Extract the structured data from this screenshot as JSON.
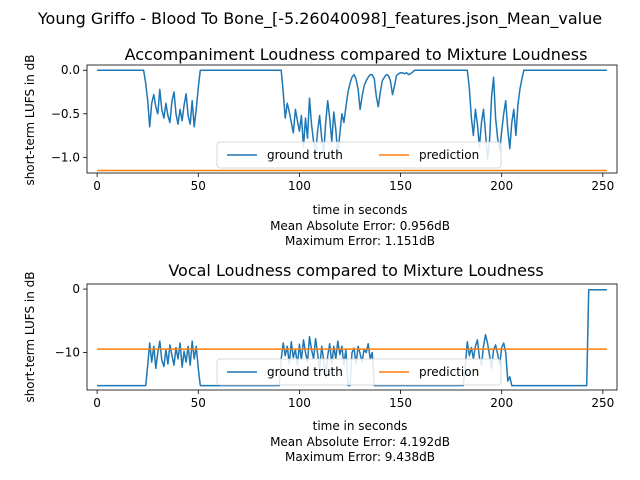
{
  "figure_title": "Young Griffo - Blood To Bone_[-5.26040098]_features.json_Mean_value",
  "colors": {
    "ground_truth": "#1f77b4",
    "prediction": "#ff7f0e"
  },
  "chart_data": [
    {
      "type": "line",
      "title": "Accompaniment Loudness compared to Mixture Loudness",
      "xlabel": "time in seconds",
      "ylabel": "short-term LUFS in dB",
      "xlim": [
        -5,
        257
      ],
      "ylim": [
        -1.18,
        0.06
      ],
      "xticks": [
        0,
        50,
        100,
        150,
        200,
        250
      ],
      "yticks": [
        0.0,
        -0.5,
        -1.0
      ],
      "ytick_labels": [
        "0.0",
        "−0.5",
        "−1.0"
      ],
      "legend": {
        "placement": "lower center",
        "entries": [
          "ground truth",
          "prediction"
        ]
      },
      "annotations": [
        "Mean Absolute Error: 0.956dB",
        "Maximum Error: 1.151dB"
      ],
      "series": [
        {
          "name": "ground truth",
          "x": [
            0,
            23,
            24,
            25,
            26,
            27,
            28,
            29,
            30,
            31,
            32,
            33,
            34,
            35,
            36,
            37,
            38,
            39,
            40,
            41,
            42,
            43,
            44,
            45,
            46,
            47,
            48,
            49,
            50,
            51,
            91,
            92,
            93,
            94,
            95,
            96,
            97,
            98,
            99,
            100,
            101,
            102,
            103,
            104,
            105,
            106,
            107,
            108,
            109,
            110,
            111,
            112,
            113,
            114,
            115,
            116,
            117,
            118,
            119,
            120,
            121,
            122,
            123,
            124,
            125,
            126,
            127,
            128,
            129,
            130,
            131,
            132,
            133,
            134,
            135,
            136,
            137,
            138,
            139,
            140,
            141,
            142,
            143,
            144,
            145,
            146,
            147,
            148,
            149,
            150,
            151,
            152,
            153,
            154,
            155,
            156,
            157,
            183,
            184,
            185,
            186,
            187,
            188,
            189,
            190,
            191,
            192,
            193,
            194,
            195,
            196,
            197,
            198,
            199,
            200,
            201,
            202,
            203,
            204,
            205,
            206,
            207,
            208,
            209,
            210,
            211,
            252
          ],
          "y": [
            0.0,
            0.0,
            -0.15,
            -0.35,
            -0.65,
            -0.38,
            -0.28,
            -0.42,
            -0.5,
            -0.22,
            -0.45,
            -0.55,
            -0.38,
            -0.52,
            -0.6,
            -0.35,
            -0.25,
            -0.5,
            -0.62,
            -0.45,
            -0.58,
            -0.4,
            -0.27,
            -0.52,
            -0.62,
            -0.35,
            -0.65,
            -0.45,
            -0.2,
            0.0,
            0.0,
            -0.25,
            -0.55,
            -0.38,
            -0.48,
            -0.6,
            -0.72,
            -0.45,
            -0.58,
            -0.7,
            -0.52,
            -0.88,
            -0.55,
            -0.78,
            -0.32,
            -0.62,
            -0.82,
            -0.95,
            -0.7,
            -0.52,
            -0.78,
            -0.95,
            -0.6,
            -0.35,
            -0.55,
            -0.82,
            -0.48,
            -0.68,
            -0.98,
            -0.72,
            -0.5,
            -0.6,
            -0.42,
            -0.25,
            -0.15,
            -0.08,
            -0.05,
            -0.1,
            -0.22,
            -0.45,
            -0.3,
            -0.18,
            -0.12,
            -0.08,
            -0.05,
            -0.05,
            -0.1,
            -0.3,
            -0.42,
            -0.25,
            -0.12,
            -0.08,
            -0.05,
            -0.06,
            -0.12,
            -0.28,
            -0.18,
            -0.06,
            -0.04,
            -0.03,
            -0.03,
            -0.04,
            -0.03,
            -0.05,
            -0.04,
            -0.02,
            0.0,
            0.0,
            -0.2,
            -0.55,
            -0.75,
            -0.45,
            -0.62,
            -0.88,
            -0.6,
            -0.45,
            -0.72,
            -1.02,
            -0.8,
            -0.3,
            -0.08,
            -0.55,
            -0.78,
            -0.92,
            -0.7,
            -0.5,
            -0.35,
            -0.68,
            -0.9,
            -0.6,
            -0.45,
            -0.75,
            -0.4,
            -0.22,
            -0.1,
            0.0,
            0.0
          ]
        },
        {
          "name": "prediction",
          "x": [
            0,
            252
          ],
          "y": [
            -1.151,
            -1.151
          ]
        }
      ]
    },
    {
      "type": "line",
      "title": "Vocal Loudness compared to Mixture Loudness",
      "xlabel": "time in seconds",
      "ylabel": "short-term LUFS in dB",
      "xlim": [
        -5,
        257
      ],
      "ylim": [
        -15.9,
        0.8
      ],
      "xticks": [
        0,
        50,
        100,
        150,
        200,
        250
      ],
      "yticks": [
        0,
        -10
      ],
      "ytick_labels": [
        "0",
        "−10"
      ],
      "legend": {
        "placement": "lower center",
        "entries": [
          "ground truth",
          "prediction"
        ]
      },
      "annotations": [
        "Mean Absolute Error: 4.192dB",
        "Maximum Error: 9.438dB"
      ],
      "series": [
        {
          "name": "ground truth",
          "x": [
            0,
            24,
            25,
            26,
            27,
            28,
            29,
            30,
            31,
            32,
            33,
            34,
            35,
            36,
            37,
            38,
            39,
            40,
            41,
            42,
            43,
            44,
            45,
            46,
            47,
            48,
            49,
            50,
            51,
            90,
            91,
            92,
            93,
            94,
            95,
            96,
            97,
            98,
            99,
            100,
            101,
            102,
            103,
            104,
            105,
            106,
            107,
            108,
            109,
            110,
            111,
            112,
            113,
            114,
            115,
            116,
            117,
            118,
            119,
            120,
            121,
            122,
            123,
            124,
            125,
            126,
            127,
            128,
            129,
            130,
            131,
            132,
            133,
            134,
            135,
            136,
            137,
            138,
            139,
            140,
            141,
            142,
            143,
            144,
            145,
            181,
            182,
            183,
            184,
            185,
            186,
            187,
            188,
            189,
            190,
            191,
            192,
            193,
            194,
            195,
            196,
            197,
            198,
            199,
            200,
            201,
            202,
            203,
            204,
            205,
            206,
            207,
            208,
            209,
            210,
            211,
            212,
            213,
            214,
            215,
            216,
            217,
            218,
            219,
            220,
            242,
            243,
            252
          ],
          "y": [
            -15.2,
            -15.2,
            -12.0,
            -8.5,
            -11.5,
            -9.0,
            -12.5,
            -10.0,
            -8.2,
            -11.2,
            -12.2,
            -9.5,
            -11.8,
            -8.8,
            -10.5,
            -12.0,
            -9.2,
            -11.0,
            -8.5,
            -12.3,
            -9.8,
            -11.5,
            -9.0,
            -12.0,
            -8.2,
            -11.0,
            -9.0,
            -12.5,
            -15.2,
            -15.2,
            -11.0,
            -8.5,
            -10.5,
            -9.0,
            -11.8,
            -8.3,
            -10.8,
            -9.5,
            -12.0,
            -8.7,
            -11.2,
            -8.0,
            -10.0,
            -11.5,
            -7.5,
            -9.5,
            -11.0,
            -7.8,
            -10.2,
            -12.5,
            -9.0,
            -11.2,
            -14.0,
            -10.5,
            -8.6,
            -11.8,
            -9.0,
            -11.0,
            -8.2,
            -10.3,
            -9.0,
            -12.0,
            -9.5,
            -15.2,
            -15.2,
            -10.0,
            -9.3,
            -11.8,
            -9.0,
            -10.2,
            -11.5,
            -9.5,
            -10.0,
            -8.6,
            -11.0,
            -10.0,
            -15.2,
            -15.2,
            -15.2,
            -15.2,
            -15.2,
            -15.2,
            -15.2,
            -15.2,
            -15.2,
            -15.2,
            -12.0,
            -8.3,
            -10.5,
            -9.2,
            -11.0,
            -9.0,
            -8.0,
            -10.8,
            -12.0,
            -9.0,
            -7.2,
            -8.5,
            -10.5,
            -12.5,
            -9.5,
            -8.8,
            -10.2,
            -12.0,
            -9.2,
            -8.5,
            -10.0,
            -14.5,
            -13.8,
            -15.2,
            -15.2,
            -15.2,
            -15.2,
            -15.2,
            -15.2,
            -15.2,
            -15.2,
            -15.2,
            -15.2,
            -15.2,
            -15.2,
            -15.2,
            -15.2,
            -15.2,
            -15.2,
            -15.2,
            -0.1,
            -0.1
          ]
        },
        {
          "name": "prediction",
          "x": [
            0,
            252
          ],
          "y": [
            -9.45,
            -9.45
          ]
        }
      ]
    }
  ]
}
